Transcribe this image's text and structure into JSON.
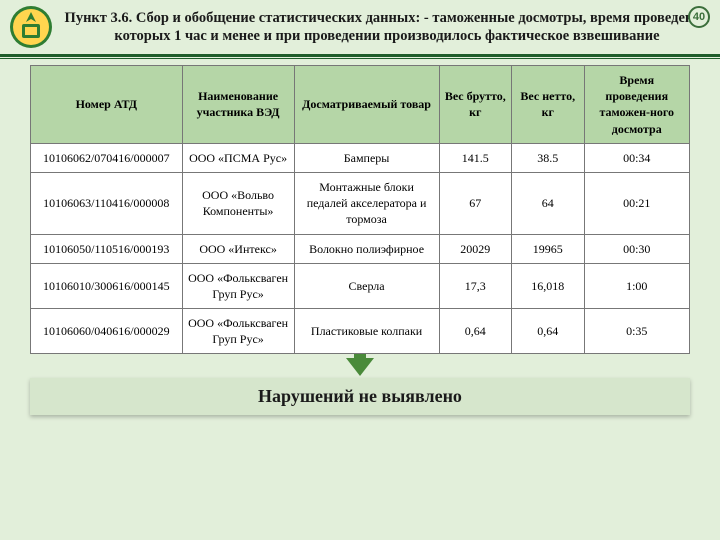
{
  "slide_number": "40",
  "title": "Пункт 3.6. Сбор и обобщение статистических данных: - таможенные досмотры, время проведения которых 1 час и менее и при проведении производилось фактическое взвешивание",
  "table": {
    "columns": [
      "Номер АТД",
      "Наименование участника ВЭД",
      "Досматриваемый товар",
      "Вес брутто, кг",
      "Вес нетто, кг",
      "Время проведения таможен-ного досмотра"
    ],
    "col_widths": [
      "23%",
      "17%",
      "22%",
      "11%",
      "11%",
      "16%"
    ],
    "rows": [
      [
        "10106062/070416/000007",
        "ООО «ПСМА Рус»",
        "Бамперы",
        "141.5",
        "38.5",
        "00:34"
      ],
      [
        "10106063/110416/000008",
        "ООО «Вольво Компоненты»",
        "Монтажные блоки педалей акселератора и тормоза",
        "67",
        "64",
        "00:21"
      ],
      [
        "10106050/110516/000193",
        "ООО «Интекс»",
        "Волокно полиэфирное",
        "20029",
        "19965",
        "00:30"
      ],
      [
        "10106010/300616/000145",
        "ООО «Фольксваген Груп Рус»",
        "Сверла",
        "17,3",
        "16,018",
        "1:00"
      ],
      [
        "10106060/040616/000029",
        "ООО «Фольксваген Груп Рус»",
        "Пластиковые колпаки",
        "0,64",
        "0,64",
        "0:35"
      ]
    ]
  },
  "conclusion": "Нарушений не выявлено",
  "colors": {
    "page_bg": "#e2efda",
    "header_rule": "#1f5d2a",
    "th_bg": "#b5d6a7",
    "arrow": "#4a8a3a",
    "conclusion_bg": "#d6e6cc"
  }
}
